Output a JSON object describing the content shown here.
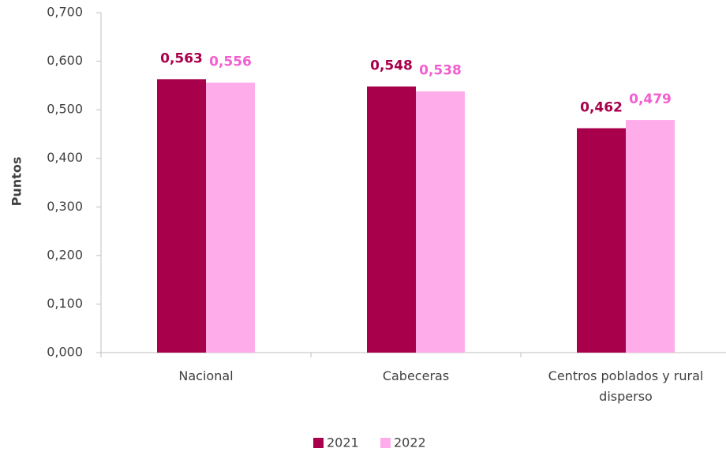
{
  "chart_data": {
    "type": "bar",
    "y_label": "Puntos",
    "categories": [
      "Nacional",
      "Cabeceras",
      "Centros poblados y rural disperso"
    ],
    "series": [
      {
        "name": "2021",
        "color": "#a8004a",
        "values": [
          0.563,
          0.548,
          0.462
        ],
        "value_labels": [
          "0,563",
          "0,548",
          "0,462"
        ]
      },
      {
        "name": "2022",
        "color": "#ffadea",
        "values": [
          0.556,
          0.538,
          0.479
        ],
        "value_labels": [
          "0,556",
          "0,538",
          "0,479"
        ]
      }
    ],
    "ylim": [
      0,
      0.7
    ],
    "yticks": [
      {
        "value": 0,
        "label": "0,000"
      },
      {
        "value": 0.1,
        "label": "0,100"
      },
      {
        "value": 0.2,
        "label": "0,200"
      },
      {
        "value": 0.3,
        "label": "0,300"
      },
      {
        "value": 0.4,
        "label": "0,400"
      },
      {
        "value": 0.5,
        "label": "0,500"
      },
      {
        "value": 0.6,
        "label": "0,600"
      },
      {
        "value": 0.7,
        "label": "0,700"
      }
    ],
    "grid": false,
    "legend": "bottom"
  }
}
